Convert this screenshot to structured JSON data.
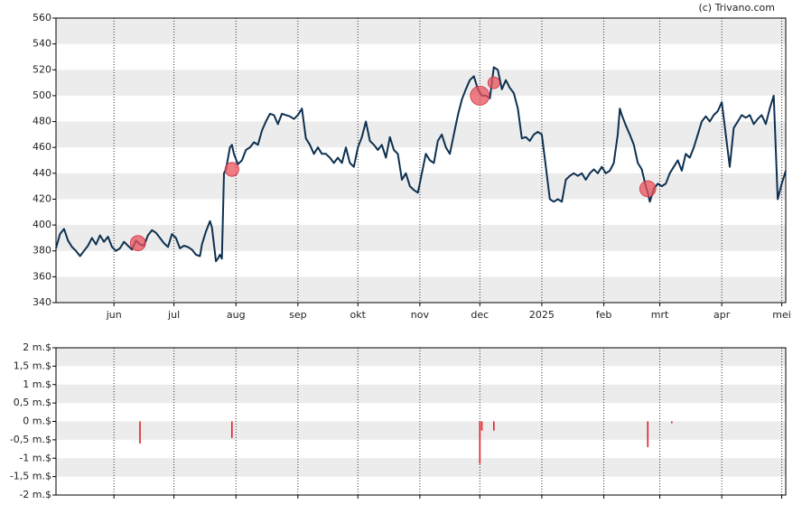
{
  "credit": "(c) Trivano.com",
  "chart_data": [
    {
      "type": "line",
      "xlim": [
        -29,
        336
      ],
      "xticks": [
        {
          "value": 0,
          "label": "jun"
        },
        {
          "value": 30,
          "label": "jul"
        },
        {
          "value": 61,
          "label": "aug"
        },
        {
          "value": 92,
          "label": "sep"
        },
        {
          "value": 122,
          "label": "okt"
        },
        {
          "value": 153,
          "label": "nov"
        },
        {
          "value": 183,
          "label": "dec"
        },
        {
          "value": 214,
          "label": "2025"
        },
        {
          "value": 245,
          "label": "feb"
        },
        {
          "value": 273,
          "label": "mrt"
        },
        {
          "value": 304,
          "label": "apr"
        },
        {
          "value": 334,
          "label": "mei"
        }
      ],
      "ylim": [
        340,
        560
      ],
      "yticks": [
        340,
        360,
        380,
        400,
        420,
        440,
        460,
        480,
        500,
        520,
        540,
        560
      ],
      "grid": true,
      "series": [
        {
          "color": "#0d3050",
          "x": [
            -29,
            -27,
            -25,
            -23,
            -21,
            -19,
            -17,
            -15,
            -13,
            -11,
            -9,
            -7,
            -5,
            -3,
            -1,
            1,
            3,
            5,
            7,
            9,
            11,
            13,
            15,
            17,
            19,
            21,
            23,
            25,
            27,
            29,
            31,
            33,
            35,
            37,
            39,
            41,
            43,
            44,
            46,
            48,
            49,
            50,
            51,
            52,
            53,
            54,
            55,
            56,
            58,
            59,
            60,
            62,
            64,
            66,
            68,
            70,
            72,
            74,
            76,
            78,
            80,
            82,
            84,
            86,
            88,
            90,
            92,
            94,
            96,
            98,
            100,
            102,
            104,
            106,
            108,
            110,
            112,
            114,
            116,
            118,
            120,
            122,
            124,
            126,
            128,
            130,
            132,
            134,
            136,
            138,
            140,
            142,
            144,
            146,
            148,
            150,
            152,
            154,
            156,
            158,
            160,
            162,
            164,
            166,
            168,
            170,
            172,
            174,
            176,
            178,
            180,
            182,
            184,
            186,
            188,
            190,
            192,
            194,
            196,
            198,
            200,
            202,
            204,
            206,
            208,
            210,
            212,
            214,
            216,
            218,
            220,
            222,
            224,
            226,
            228,
            230,
            232,
            234,
            236,
            238,
            240,
            242,
            244,
            246,
            248,
            250,
            252,
            253,
            254,
            256,
            258,
            260,
            262,
            264,
            266,
            267,
            268,
            270,
            272,
            274,
            276,
            278,
            280,
            282,
            284,
            286,
            288,
            290,
            292,
            294,
            296,
            298,
            300,
            302,
            304,
            306,
            308,
            310,
            312,
            314,
            316,
            318,
            320,
            322,
            324,
            326,
            328,
            330,
            332,
            334,
            336
          ],
          "values": [
            382,
            393,
            397,
            388,
            383,
            380,
            376,
            380,
            384,
            390,
            385,
            392,
            387,
            391,
            383,
            380,
            382,
            387,
            384,
            381,
            388,
            385,
            384,
            392,
            396,
            394,
            390,
            386,
            383,
            393,
            390,
            382,
            384,
            383,
            381,
            377,
            376,
            385,
            395,
            403,
            398,
            385,
            372,
            374,
            377,
            374,
            440,
            443,
            460,
            462,
            455,
            447,
            450,
            458,
            460,
            464,
            462,
            473,
            480,
            486,
            485,
            478,
            486,
            485,
            484,
            482,
            485,
            490,
            467,
            462,
            455,
            460,
            455,
            455,
            452,
            448,
            452,
            448,
            460,
            448,
            445,
            460,
            468,
            480,
            465,
            462,
            458,
            462,
            452,
            468,
            458,
            455,
            435,
            440,
            430,
            427,
            425,
            440,
            455,
            450,
            448,
            465,
            470,
            460,
            455,
            470,
            485,
            497,
            505,
            512,
            515,
            505,
            500,
            500,
            498,
            522,
            520,
            505,
            512,
            506,
            502,
            490,
            467,
            468,
            465,
            470,
            472,
            470,
            445,
            420,
            418,
            420,
            418,
            435,
            438,
            440,
            438,
            440,
            435,
            440,
            443,
            440,
            445,
            440,
            442,
            448,
            470,
            490,
            485,
            477,
            470,
            462,
            448,
            443,
            430,
            425,
            418,
            428,
            432,
            430,
            432,
            440,
            445,
            450,
            442,
            455,
            452,
            460,
            470,
            480,
            484,
            480,
            485,
            488,
            495,
            470,
            445,
            475,
            480,
            485,
            483,
            485,
            478,
            482,
            485,
            478,
            490,
            500,
            420,
            432,
            442
          ]
        },
        {
          "type": "scatter",
          "color": "#e8525e",
          "x": [
            12,
            59,
            183,
            190,
            267
          ],
          "values": [
            386,
            443,
            500,
            510,
            428
          ],
          "sizes": [
            0.6,
            0.45,
            1.15,
            0.25,
            0.7
          ]
        }
      ]
    },
    {
      "type": "bar",
      "color": "#e0202a",
      "xlim": [
        -29,
        336
      ],
      "xticks": [
        {
          "value": 0,
          "label": "jun"
        },
        {
          "value": 30,
          "label": "jul"
        },
        {
          "value": 61,
          "label": "aug"
        },
        {
          "value": 92,
          "label": "sep"
        },
        {
          "value": 122,
          "label": "okt"
        },
        {
          "value": 153,
          "label": "nov"
        },
        {
          "value": 183,
          "label": "dec"
        },
        {
          "value": 214,
          "label": "2025"
        },
        {
          "value": 245,
          "label": "feb"
        },
        {
          "value": 273,
          "label": "mrt"
        },
        {
          "value": 304,
          "label": "apr"
        },
        {
          "value": 334,
          "label": "mei"
        }
      ],
      "ylim": [
        -2,
        2
      ],
      "yticks": [
        {
          "value": -2,
          "label": "-2 m.$"
        },
        {
          "value": -1.5,
          "label": "-1,5 m.$"
        },
        {
          "value": -1,
          "label": "-1 m.$"
        },
        {
          "value": -0.5,
          "label": "-0,5 m.$"
        },
        {
          "value": 0,
          "label": "0 m.$"
        },
        {
          "value": 0.5,
          "label": "0,5 m.$"
        },
        {
          "value": 1,
          "label": "1 m.$"
        },
        {
          "value": 1.5,
          "label": "1,5 m.$"
        },
        {
          "value": 2,
          "label": "2 m.$"
        }
      ],
      "grid": true,
      "x": [
        13,
        59,
        183,
        184,
        190,
        267,
        279
      ],
      "values": [
        -0.6,
        -0.45,
        -1.15,
        -0.25,
        -0.25,
        -0.7,
        -0.05
      ]
    }
  ]
}
